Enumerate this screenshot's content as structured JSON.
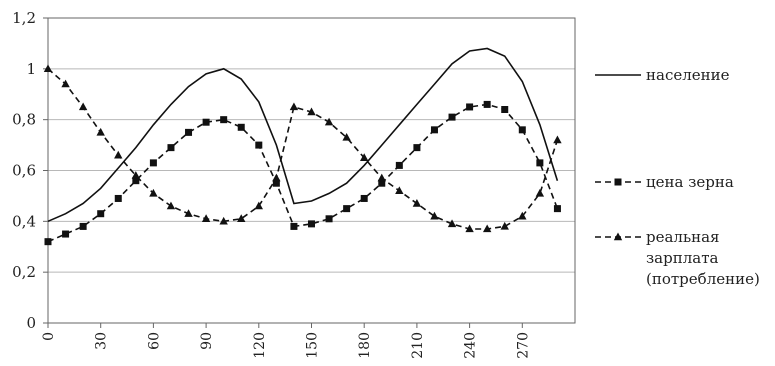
{
  "chart_data": {
    "type": "line",
    "title": "",
    "xlabel": "",
    "ylabel": "",
    "xlim": [
      0,
      300
    ],
    "ylim": [
      0,
      1.2
    ],
    "grid": true,
    "legend_position": "right",
    "y_ticks": [
      "0",
      "0,2",
      "0,4",
      "0,6",
      "0,8",
      "1",
      "1,2"
    ],
    "y_tick_values": [
      0,
      0.2,
      0.4,
      0.6,
      0.8,
      1.0,
      1.2
    ],
    "x_ticks": [
      "0",
      "30",
      "60",
      "90",
      "120",
      "150",
      "180",
      "210",
      "240",
      "270"
    ],
    "x_tick_values": [
      0,
      30,
      60,
      90,
      120,
      150,
      180,
      210,
      240,
      270
    ],
    "x": [
      0,
      10,
      20,
      30,
      40,
      50,
      60,
      70,
      80,
      90,
      100,
      110,
      120,
      130,
      140,
      150,
      160,
      170,
      180,
      190,
      200,
      210,
      220,
      230,
      240,
      250,
      260,
      270,
      280,
      290
    ],
    "series": [
      {
        "name": "население",
        "marker": "none",
        "dash": "solid",
        "values": [
          0.4,
          0.43,
          0.47,
          0.53,
          0.61,
          0.69,
          0.78,
          0.86,
          0.93,
          0.98,
          1.0,
          0.96,
          0.87,
          0.7,
          0.47,
          0.48,
          0.51,
          0.55,
          0.62,
          0.7,
          0.78,
          0.86,
          0.94,
          1.02,
          1.07,
          1.08,
          1.05,
          0.95,
          0.78,
          0.56
        ]
      },
      {
        "name": "цена зерна",
        "marker": "square",
        "dash": "dashed",
        "values": [
          0.32,
          0.35,
          0.38,
          0.43,
          0.49,
          0.56,
          0.63,
          0.69,
          0.75,
          0.79,
          0.8,
          0.77,
          0.7,
          0.55,
          0.38,
          0.39,
          0.41,
          0.45,
          0.49,
          0.55,
          0.62,
          0.69,
          0.76,
          0.81,
          0.85,
          0.86,
          0.84,
          0.76,
          0.63,
          0.45
        ]
      },
      {
        "name": "реальная зарплата (потребление)",
        "name_lines": [
          "реальная",
          "зарплата",
          "(потребление)"
        ],
        "marker": "triangle",
        "dash": "dashed",
        "values": [
          1.0,
          0.94,
          0.85,
          0.75,
          0.66,
          0.58,
          0.51,
          0.46,
          0.43,
          0.41,
          0.4,
          0.41,
          0.46,
          0.57,
          0.85,
          0.83,
          0.79,
          0.73,
          0.65,
          0.57,
          0.52,
          0.47,
          0.42,
          0.39,
          0.37,
          0.37,
          0.38,
          0.42,
          0.51,
          0.72
        ]
      }
    ]
  }
}
